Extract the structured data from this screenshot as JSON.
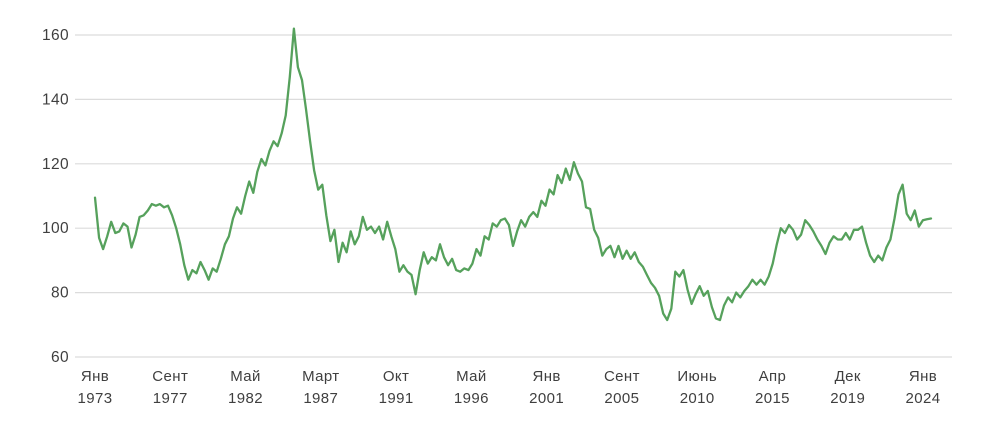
{
  "chart_data": {
    "type": "line",
    "title": "",
    "xlabel": "",
    "ylabel": "",
    "legend": "none",
    "grid": "horizontal",
    "y_ticks": [
      160,
      140,
      120,
      100,
      80,
      60
    ],
    "ylim": [
      60,
      168
    ],
    "x_ticks": [
      {
        "month": "Янв",
        "year": "1973"
      },
      {
        "month": "Сент",
        "year": "1977"
      },
      {
        "month": "Май",
        "year": "1982"
      },
      {
        "month": "Март",
        "year": "1987"
      },
      {
        "month": "Окт",
        "year": "1991"
      },
      {
        "month": "Май",
        "year": "1996"
      },
      {
        "month": "Янв",
        "year": "2001"
      },
      {
        "month": "Сент",
        "year": "2005"
      },
      {
        "month": "Июнь",
        "year": "2010"
      },
      {
        "month": "Апр",
        "year": "2015"
      },
      {
        "month": "Дек",
        "year": "2019"
      },
      {
        "month": "Янв",
        "year": "2024"
      }
    ],
    "series": [
      {
        "name": "index-line",
        "color": "#56a15c",
        "sampling": "quarterly estimate, Jan 1973 - mid 2024",
        "values": [
          109.5,
          97,
          93.5,
          97.5,
          102,
          98.5,
          99,
          101.5,
          100.5,
          94,
          98,
          103.5,
          104,
          105.5,
          107.5,
          107,
          107.5,
          106.5,
          107,
          104,
          100,
          95,
          88.5,
          84,
          87,
          86,
          89.5,
          87,
          84,
          87.5,
          86.5,
          90.5,
          95,
          97.5,
          103,
          106.5,
          104.5,
          110,
          114.5,
          111,
          117.5,
          121.5,
          119.5,
          124,
          127,
          125.5,
          129.5,
          135,
          147,
          162,
          150,
          146,
          137,
          127,
          118,
          112,
          113.5,
          104,
          96,
          99.5,
          89.5,
          95.5,
          92.5,
          99,
          95,
          97.5,
          103.5,
          99.5,
          100.5,
          98.5,
          100.5,
          96.5,
          102,
          97.5,
          93.5,
          86.5,
          88.5,
          86.5,
          85.5,
          79.5,
          87,
          92.5,
          89,
          91,
          90,
          95,
          91,
          88.5,
          90.5,
          87,
          86.5,
          87.5,
          87,
          89,
          93.5,
          91.5,
          97.5,
          96.5,
          101.5,
          100.5,
          102.5,
          103,
          101,
          94.5,
          99,
          102.5,
          100.5,
          103.5,
          105,
          103.5,
          108.5,
          107,
          112,
          110.5,
          116.5,
          114,
          118.5,
          115,
          120.5,
          117,
          114.5,
          106.5,
          106,
          99.5,
          97,
          91.5,
          93.5,
          94.5,
          91,
          94.5,
          90.5,
          93,
          90.5,
          92.5,
          89.5,
          88,
          85.5,
          83,
          81.5,
          79,
          73.5,
          71.5,
          75,
          86.5,
          85,
          87,
          81,
          76.5,
          79.5,
          82,
          79,
          80.5,
          75.5,
          72,
          71.5,
          76,
          78.5,
          77,
          80,
          78.5,
          80.5,
          82,
          84,
          82.5,
          84,
          82.5,
          85,
          89,
          95,
          100,
          98.5,
          101,
          99.5,
          96.5,
          98,
          102.5,
          101,
          99,
          96.5,
          94.5,
          92,
          95.5,
          97.5,
          96.5,
          96.5,
          98.5,
          96.5,
          99.5,
          99.5,
          100.5,
          95.5,
          91.5,
          89.5,
          91.5,
          90,
          94,
          96.5,
          103,
          110.5,
          113.5,
          104.5,
          102.5,
          105.5,
          100.5,
          102.5,
          102.8,
          103
        ]
      }
    ]
  },
  "style": {
    "line_color": "#56a15c",
    "grid_color": "#dcdcdc",
    "tick_text_color": "#3f3f3f",
    "background": "#ffffff"
  }
}
